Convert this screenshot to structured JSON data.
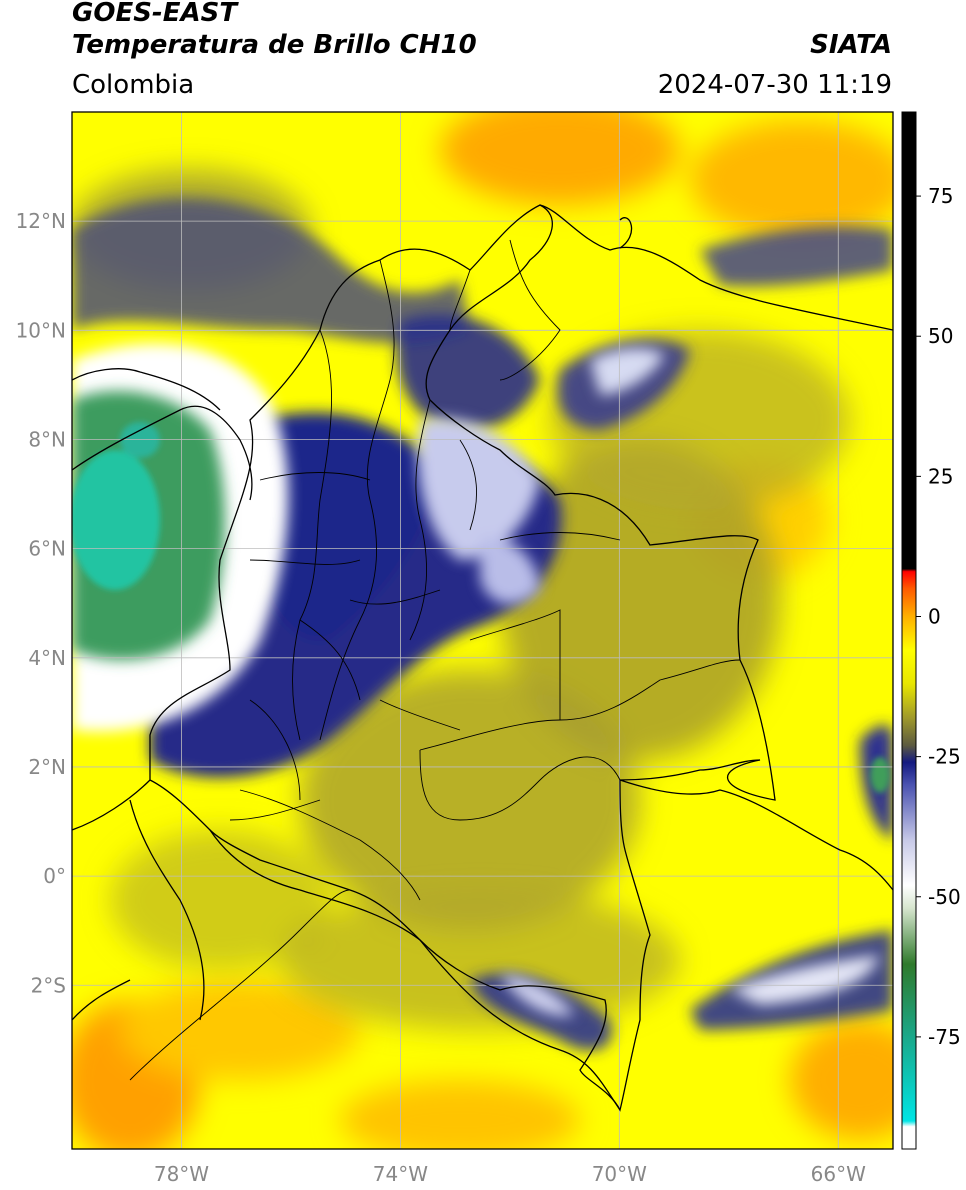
{
  "header": {
    "satellite": "GOES-EAST",
    "product": "Temperatura de Brillo CH10",
    "brand": "SIATA",
    "region": "Colombia",
    "datetime": "2024-07-30 11:19"
  },
  "axes": {
    "lat_ticks": [
      {
        "lat": 12,
        "label": "12°N"
      },
      {
        "lat": 10,
        "label": "10°N"
      },
      {
        "lat": 8,
        "label": "8°N"
      },
      {
        "lat": 6,
        "label": "6°N"
      },
      {
        "lat": 4,
        "label": "4°N"
      },
      {
        "lat": 2,
        "label": "2°N"
      },
      {
        "lat": 0,
        "label": "0°"
      },
      {
        "lat": -2,
        "label": "2°S"
      }
    ],
    "lon_ticks": [
      {
        "lon": -78,
        "label": "78°W"
      },
      {
        "lon": -74,
        "label": "74°W"
      },
      {
        "lon": -70,
        "label": "70°W"
      },
      {
        "lon": -66,
        "label": "66°W"
      }
    ],
    "lon_range": [
      -80,
      -65
    ],
    "lat_range": [
      -5,
      14
    ]
  },
  "colorbar": {
    "range": [
      -95,
      90
    ],
    "ticks": [
      {
        "value": 75,
        "label": "75"
      },
      {
        "value": 50,
        "label": "50"
      },
      {
        "value": 25,
        "label": "25"
      },
      {
        "value": 0,
        "label": "0"
      },
      {
        "value": -25,
        "label": "-25"
      },
      {
        "value": -50,
        "label": "-50"
      },
      {
        "value": -75,
        "label": "-75"
      }
    ],
    "stops": [
      {
        "value": -95,
        "color": "#ffffff"
      },
      {
        "value": -91,
        "color": "#ffffff"
      },
      {
        "value": -90,
        "color": "#00e5e5"
      },
      {
        "value": -75,
        "color": "#1aa88a"
      },
      {
        "value": -62,
        "color": "#2f7a2c"
      },
      {
        "value": -52,
        "color": "#d7e6cf"
      },
      {
        "value": -48,
        "color": "#ffffff"
      },
      {
        "value": -40,
        "color": "#c8cae8"
      },
      {
        "value": -30,
        "color": "#4a52b0"
      },
      {
        "value": -26,
        "color": "#141a80"
      },
      {
        "value": -23,
        "color": "#5c5a40"
      },
      {
        "value": -18,
        "color": "#a09a2a"
      },
      {
        "value": -12,
        "color": "#e8e600"
      },
      {
        "value": -6,
        "color": "#ffff00"
      },
      {
        "value": 0,
        "color": "#ffb000"
      },
      {
        "value": 5,
        "color": "#ff5a00"
      },
      {
        "value": 8,
        "color": "#ff0000"
      },
      {
        "value": 8.5,
        "color": "#000000"
      },
      {
        "value": 90,
        "color": "#000000"
      }
    ]
  },
  "palette": {
    "background": "#ffff00",
    "warm": "#ffa800",
    "olive": "#a8a030",
    "dark_olive": "#6e6a38",
    "navy": "#1a1f85",
    "blue_white": "#c9cdee",
    "white": "#ffffff",
    "green": "#3f9e5a",
    "teal": "#20c4a0",
    "border": "#000000",
    "grid": "#bdbdbd"
  },
  "features": {
    "cloud_regions": [
      "Pacific convective system",
      "Andes convection",
      "Venezuelan convection",
      "Amazon convection",
      "Caribbean clouds"
    ],
    "boundaries": [
      "Colombia departments",
      "Venezuela",
      "Ecuador",
      "Peru",
      "Brazil",
      "Panama",
      "Coastline"
    ]
  }
}
